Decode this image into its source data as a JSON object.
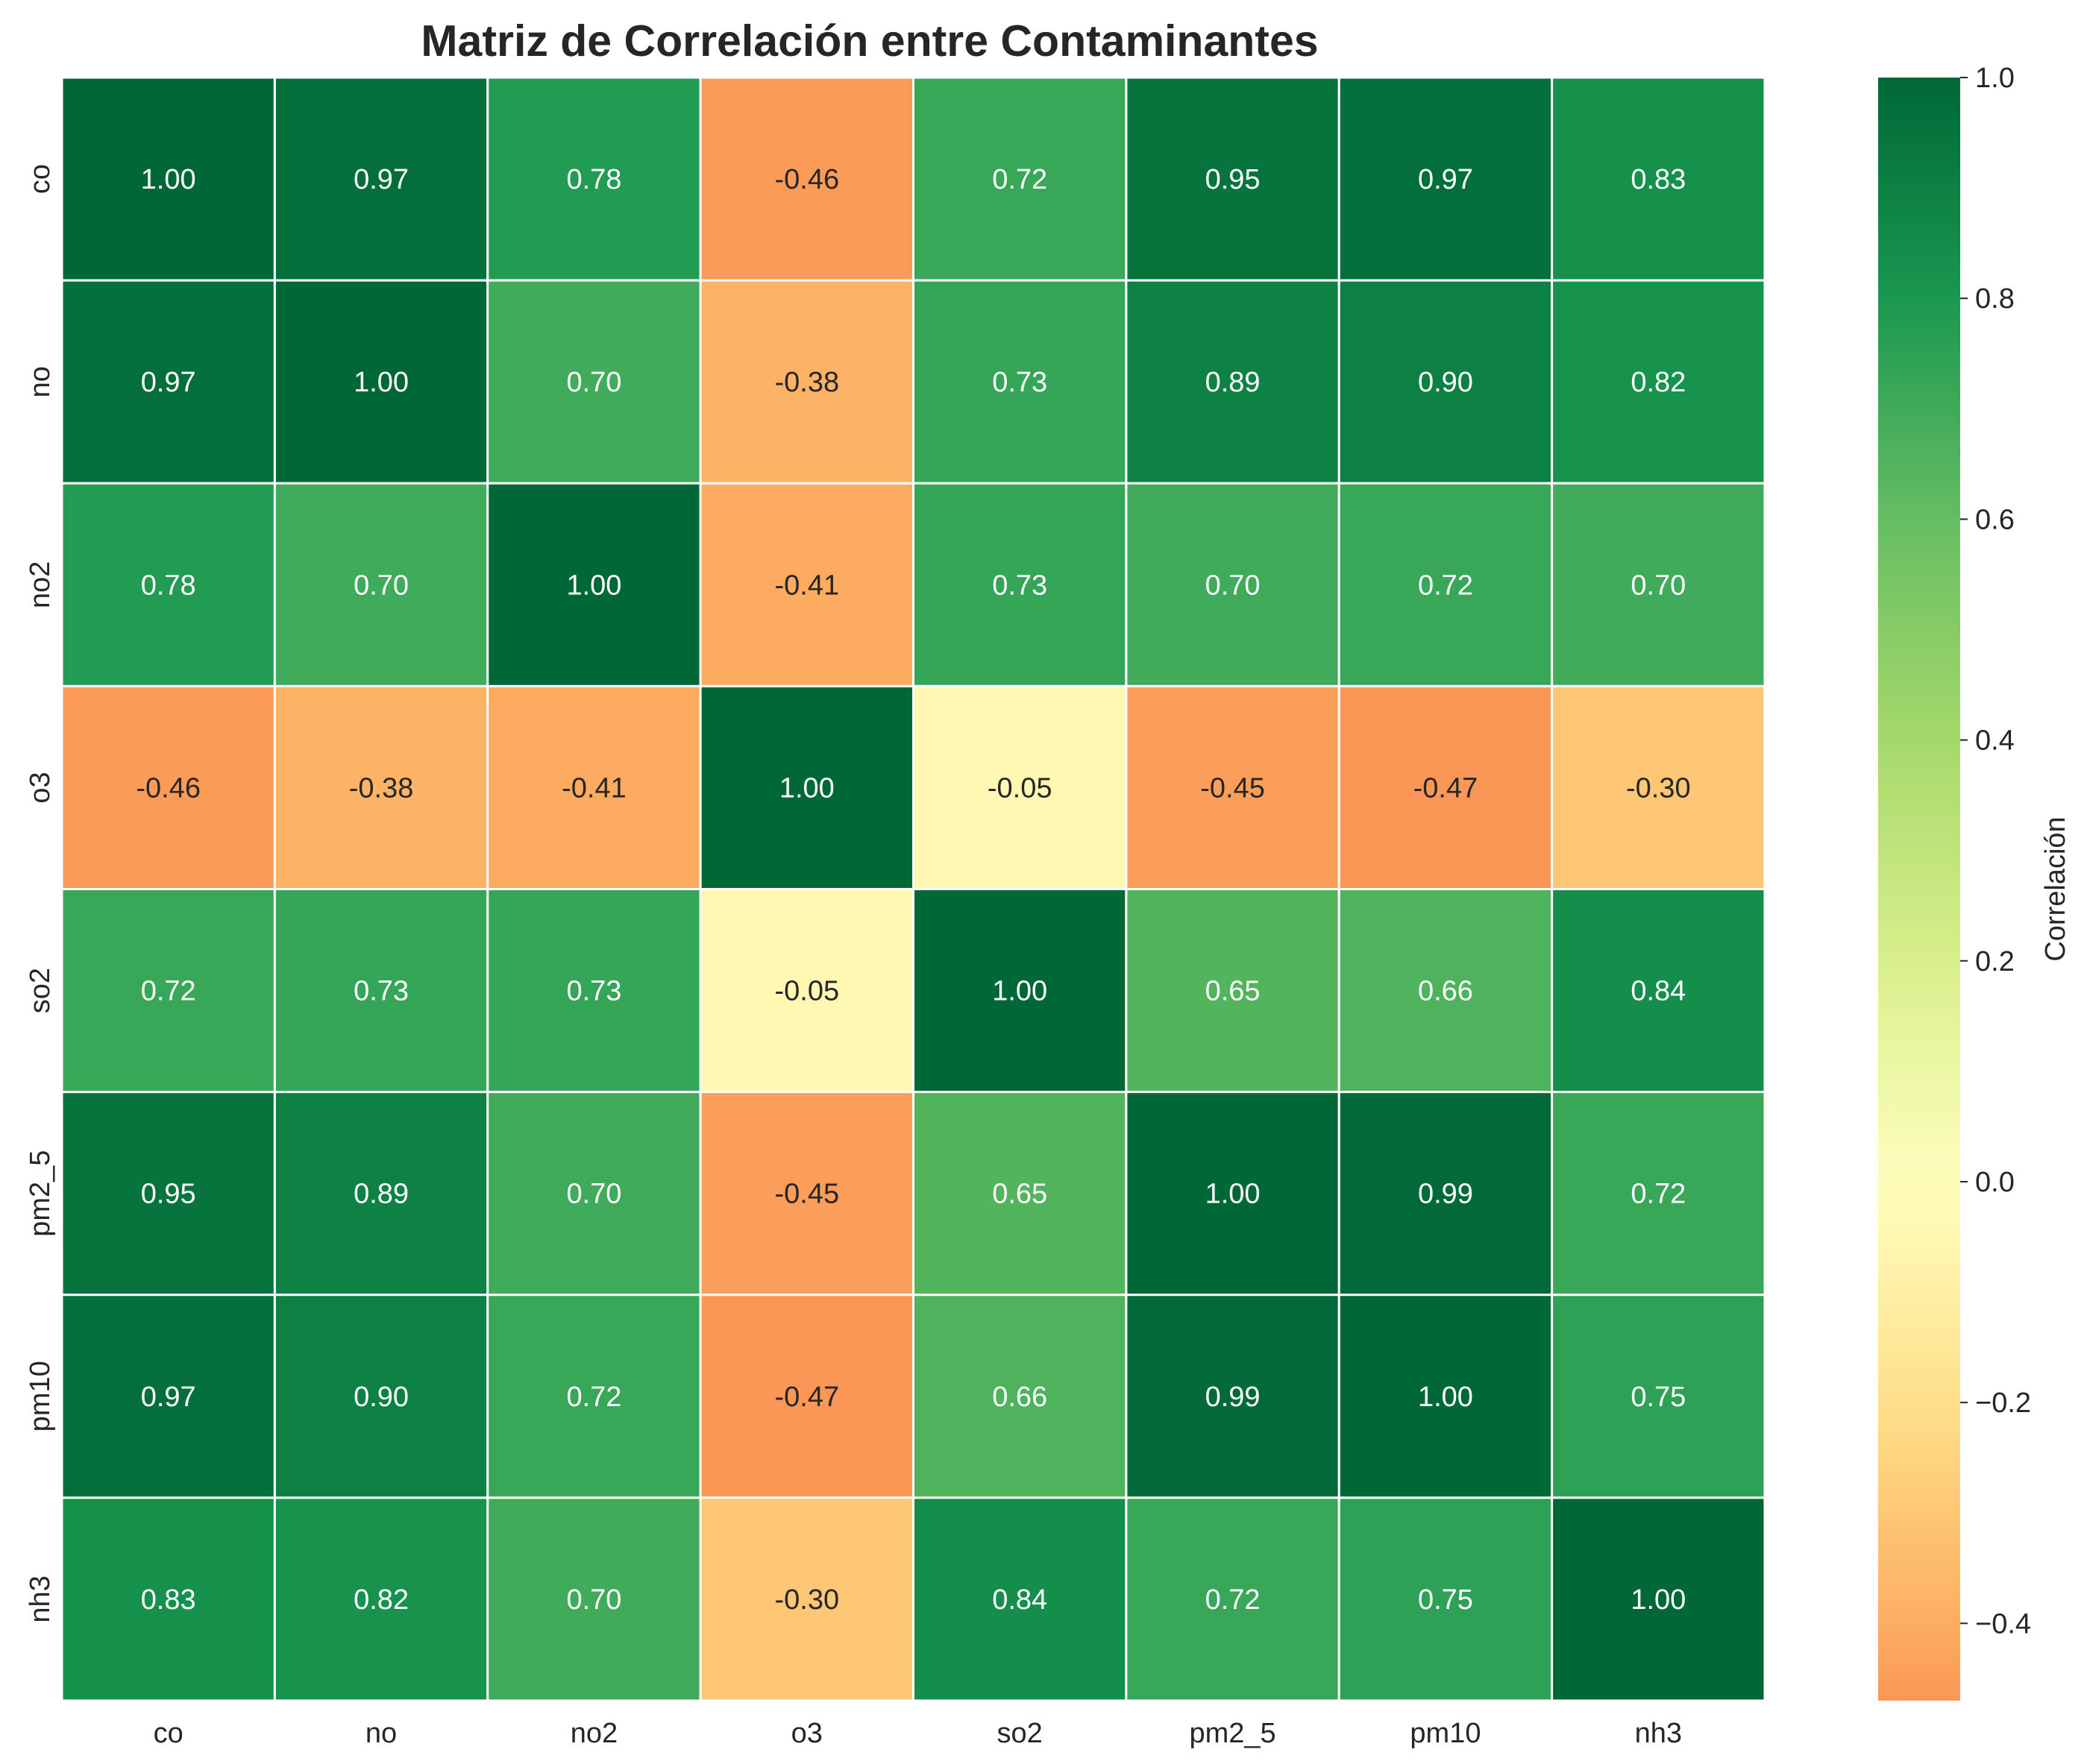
{
  "chart_data": {
    "type": "heatmap",
    "title": "Matriz de Correlación entre Contaminantes",
    "x_categories": [
      "co",
      "no",
      "no2",
      "o3",
      "so2",
      "pm2_5",
      "pm10",
      "nh3"
    ],
    "y_categories": [
      "co",
      "no",
      "no2",
      "o3",
      "so2",
      "pm2_5",
      "pm10",
      "nh3"
    ],
    "values": [
      [
        1.0,
        0.97,
        0.78,
        -0.46,
        0.72,
        0.95,
        0.97,
        0.83
      ],
      [
        0.97,
        1.0,
        0.7,
        -0.38,
        0.73,
        0.89,
        0.9,
        0.82
      ],
      [
        0.78,
        0.7,
        1.0,
        -0.41,
        0.73,
        0.7,
        0.72,
        0.7
      ],
      [
        -0.46,
        -0.38,
        -0.41,
        1.0,
        -0.05,
        -0.45,
        -0.47,
        -0.3
      ],
      [
        0.72,
        0.73,
        0.73,
        -0.05,
        1.0,
        0.65,
        0.66,
        0.84
      ],
      [
        0.95,
        0.89,
        0.7,
        -0.45,
        0.65,
        1.0,
        0.99,
        0.72
      ],
      [
        0.97,
        0.9,
        0.72,
        -0.47,
        0.66,
        0.99,
        1.0,
        0.75
      ],
      [
        0.83,
        0.82,
        0.7,
        -0.3,
        0.84,
        0.72,
        0.75,
        1.0
      ]
    ],
    "value_format": "2 decimals",
    "colormap": "RdYlGn",
    "color_center": 0.0,
    "colorbar": {
      "label": "Correlación",
      "range": [
        -0.47,
        1.0
      ],
      "ticks": [
        -0.4,
        -0.2,
        0.0,
        0.2,
        0.4,
        0.6,
        0.8,
        1.0
      ],
      "tick_labels": [
        "−0.4",
        "−0.2",
        "0.0",
        "0.2",
        "0.4",
        "0.6",
        "0.8",
        "1.0"
      ],
      "placement": "right"
    },
    "cell_separator_color": "#ffffff",
    "grid": false
  }
}
